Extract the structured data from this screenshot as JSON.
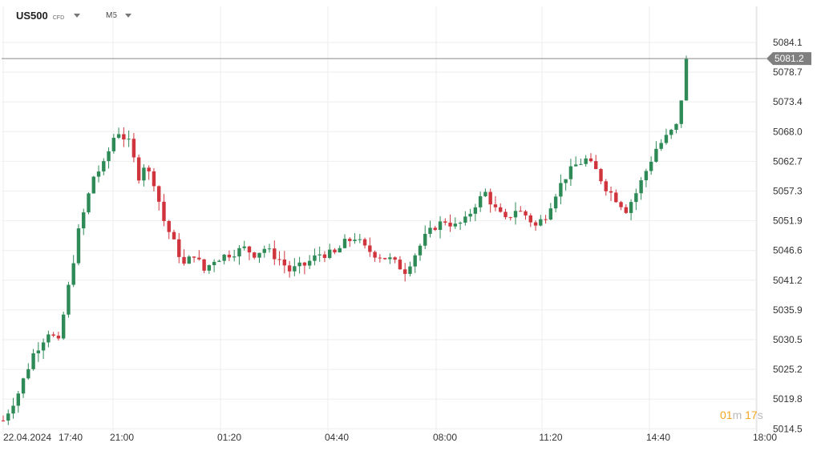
{
  "instrument": {
    "symbol": "US500",
    "type": "CFD",
    "timeframe": "M5"
  },
  "countdown": {
    "minutes": "01",
    "m": "m",
    "seconds": "17",
    "s": "s"
  },
  "icons": {
    "symbol_dropdown": "chevron-down-icon",
    "timeframe_dropdown": "chevron-down-icon"
  },
  "colors": {
    "up": "#2e8b57",
    "down": "#d0343c",
    "grid": "#eeeeee",
    "price_line": "#8a8a8a",
    "price_tag": "#7f7f7f",
    "countdown": "#f5a623"
  },
  "chart_data": {
    "type": "candlestick",
    "current_price": "5081.2",
    "y_ticks": [
      "5084.1",
      "5078.7",
      "5073.4",
      "5068.0",
      "5062.7",
      "5057.3",
      "5051.9",
      "5046.6",
      "5041.2",
      "5035.9",
      "5030.5",
      "5025.2",
      "5019.8",
      "5014.5"
    ],
    "x_ticks": [
      "22.04.2024",
      "17:40",
      "21:00",
      "01:20",
      "04:40",
      "08:00",
      "11:20",
      "14:40",
      "18:00"
    ],
    "grid": true,
    "path": [
      [
        0,
        5016
      ],
      [
        3,
        5021
      ],
      [
        6,
        5028
      ],
      [
        9,
        5032
      ],
      [
        11,
        5030
      ],
      [
        13,
        5040
      ],
      [
        15,
        5050
      ],
      [
        18,
        5060
      ],
      [
        20,
        5062
      ],
      [
        22,
        5067
      ],
      [
        23,
        5068
      ],
      [
        25,
        5066
      ],
      [
        26,
        5063
      ],
      [
        27,
        5060
      ],
      [
        28,
        5062
      ],
      [
        30,
        5059
      ],
      [
        32,
        5052
      ],
      [
        34,
        5048
      ],
      [
        36,
        5044
      ],
      [
        38,
        5046
      ],
      [
        40,
        5043
      ],
      [
        42,
        5045
      ],
      [
        45,
        5046
      ],
      [
        48,
        5047
      ],
      [
        50,
        5046
      ],
      [
        52,
        5047
      ],
      [
        55,
        5045
      ],
      [
        57,
        5043
      ],
      [
        60,
        5044
      ],
      [
        63,
        5046
      ],
      [
        66,
        5046
      ],
      [
        68,
        5048
      ],
      [
        70,
        5049
      ],
      [
        72,
        5047
      ],
      [
        74,
        5046
      ],
      [
        77,
        5045
      ],
      [
        80,
        5043
      ],
      [
        82,
        5046
      ],
      [
        84,
        5049
      ],
      [
        86,
        5051
      ],
      [
        88,
        5052
      ],
      [
        90,
        5051
      ],
      [
        92,
        5052
      ],
      [
        94,
        5055
      ],
      [
        96,
        5057
      ],
      [
        98,
        5054
      ],
      [
        100,
        5052
      ],
      [
        102,
        5054
      ],
      [
        104,
        5053
      ],
      [
        106,
        5051
      ],
      [
        108,
        5053
      ],
      [
        110,
        5057
      ],
      [
        112,
        5060
      ],
      [
        114,
        5062
      ],
      [
        116,
        5063
      ],
      [
        118,
        5061
      ],
      [
        120,
        5058
      ],
      [
        122,
        5056
      ],
      [
        124,
        5054
      ],
      [
        126,
        5057
      ],
      [
        128,
        5061
      ],
      [
        130,
        5065
      ],
      [
        132,
        5067
      ],
      [
        134,
        5069
      ],
      [
        135,
        5074
      ],
      [
        136,
        5081
      ]
    ]
  }
}
